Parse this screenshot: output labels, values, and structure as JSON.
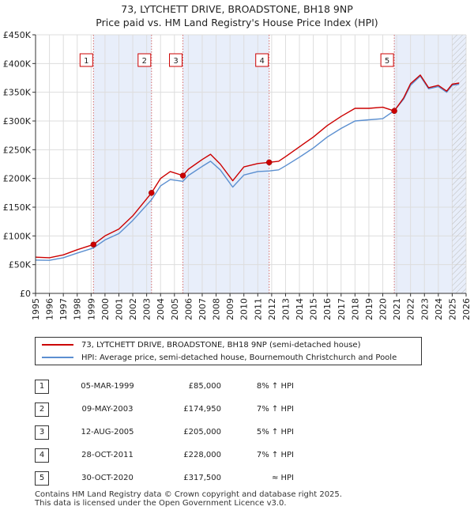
{
  "title_line1": "73, LYTCHETT DRIVE, BROADSTONE, BH18 9NP",
  "title_line2": "Price paid vs. HM Land Registry's House Price Index (HPI)",
  "colors": {
    "property": "#cc0000",
    "hpi": "#5b8fd0",
    "shade": "#e8eefa",
    "marker_line": "#d46a6a"
  },
  "chart_data": {
    "type": "line",
    "xlim": [
      1995,
      2026
    ],
    "ylim": [
      0,
      450000
    ],
    "x_ticks": [
      "1995",
      "1996",
      "1997",
      "1998",
      "1999",
      "2000",
      "2001",
      "2002",
      "2003",
      "2004",
      "2005",
      "2006",
      "2007",
      "2008",
      "2009",
      "2010",
      "2011",
      "2012",
      "2013",
      "2014",
      "2015",
      "2016",
      "2017",
      "2018",
      "2019",
      "2020",
      "2021",
      "2022",
      "2023",
      "2024",
      "2025",
      "2026"
    ],
    "y_ticks": [
      {
        "value": 0,
        "label": "£0"
      },
      {
        "value": 50000,
        "label": "£50K"
      },
      {
        "value": 100000,
        "label": "£100K"
      },
      {
        "value": 150000,
        "label": "£150K"
      },
      {
        "value": 200000,
        "label": "£200K"
      },
      {
        "value": 250000,
        "label": "£250K"
      },
      {
        "value": 300000,
        "label": "£300K"
      },
      {
        "value": 350000,
        "label": "£350K"
      },
      {
        "value": 400000,
        "label": "£400K"
      },
      {
        "value": 450000,
        "label": "£450K"
      }
    ],
    "shaded_ranges": [
      [
        1999.17,
        2003.35
      ],
      [
        2005.61,
        2011.82
      ],
      [
        2020.83,
        2026
      ]
    ],
    "hatched_from": 2025.0,
    "series": [
      {
        "name": "73, LYTCHETT DRIVE, BROADSTONE, BH18 9NP (semi-detached house)",
        "color": "#cc0000",
        "points": [
          [
            1995,
            63000
          ],
          [
            1996,
            62000
          ],
          [
            1997,
            67000
          ],
          [
            1998,
            76000
          ],
          [
            1999.17,
            85000
          ],
          [
            2000,
            100000
          ],
          [
            2001,
            112000
          ],
          [
            2002,
            135000
          ],
          [
            2003.35,
            174950
          ],
          [
            2004,
            200000
          ],
          [
            2004.7,
            212000
          ],
          [
            2005.61,
            205000
          ],
          [
            2006,
            216000
          ],
          [
            2007,
            233000
          ],
          [
            2007.6,
            242000
          ],
          [
            2008.3,
            225000
          ],
          [
            2009.2,
            196000
          ],
          [
            2010,
            220000
          ],
          [
            2011,
            226000
          ],
          [
            2011.82,
            228000
          ],
          [
            2012.5,
            230000
          ],
          [
            2013,
            238000
          ],
          [
            2014,
            255000
          ],
          [
            2015,
            272000
          ],
          [
            2016,
            292000
          ],
          [
            2017,
            308000
          ],
          [
            2018,
            322000
          ],
          [
            2019,
            322000
          ],
          [
            2020,
            324000
          ],
          [
            2020.83,
            317500
          ],
          [
            2021.5,
            340000
          ],
          [
            2022,
            365000
          ],
          [
            2022.7,
            380000
          ],
          [
            2023.3,
            358000
          ],
          [
            2024,
            362000
          ],
          [
            2024.6,
            352000
          ],
          [
            2025,
            364000
          ],
          [
            2025.5,
            366000
          ]
        ]
      },
      {
        "name": "HPI: Average price, semi-detached house, Bournemouth Christchurch and Poole",
        "color": "#5b8fd0",
        "points": [
          [
            1995,
            58000
          ],
          [
            1996,
            57500
          ],
          [
            1997,
            62000
          ],
          [
            1998,
            70000
          ],
          [
            1999.17,
            79000
          ],
          [
            2000,
            93000
          ],
          [
            2001,
            104000
          ],
          [
            2002,
            127000
          ],
          [
            2003.35,
            163000
          ],
          [
            2004,
            187000
          ],
          [
            2004.7,
            198000
          ],
          [
            2005.61,
            195000
          ],
          [
            2006,
            205000
          ],
          [
            2007,
            221000
          ],
          [
            2007.6,
            230000
          ],
          [
            2008.3,
            215000
          ],
          [
            2009.2,
            185000
          ],
          [
            2010,
            206000
          ],
          [
            2011,
            212000
          ],
          [
            2011.82,
            213000
          ],
          [
            2012.5,
            215000
          ],
          [
            2013,
            222000
          ],
          [
            2014,
            237000
          ],
          [
            2015,
            253000
          ],
          [
            2016,
            272000
          ],
          [
            2017,
            287000
          ],
          [
            2018,
            300000
          ],
          [
            2019,
            302000
          ],
          [
            2020,
            304000
          ],
          [
            2020.83,
            318000
          ],
          [
            2021.5,
            338000
          ],
          [
            2022,
            362000
          ],
          [
            2022.7,
            378000
          ],
          [
            2023.3,
            356000
          ],
          [
            2024,
            360000
          ],
          [
            2024.6,
            350000
          ],
          [
            2025,
            362000
          ],
          [
            2025.5,
            364000
          ]
        ]
      }
    ],
    "sales": [
      {
        "label": "1",
        "date": "05-MAR-1999",
        "x": 1999.17,
        "price": 85000,
        "price_label": "£85,000",
        "hpi": "8% ↑ HPI"
      },
      {
        "label": "2",
        "date": "09-MAY-2003",
        "x": 2003.35,
        "price": 174950,
        "price_label": "£174,950",
        "hpi": "7% ↑ HPI"
      },
      {
        "label": "3",
        "date": "12-AUG-2005",
        "x": 2005.61,
        "price": 205000,
        "price_label": "£205,000",
        "hpi": "5% ↑ HPI"
      },
      {
        "label": "4",
        "date": "28-OCT-2011",
        "x": 2011.82,
        "price": 228000,
        "price_label": "£228,000",
        "hpi": "7% ↑ HPI"
      },
      {
        "label": "5",
        "date": "30-OCT-2020",
        "x": 2020.83,
        "price": 317500,
        "price_label": "£317,500",
        "hpi": "≈ HPI"
      }
    ]
  },
  "legend": {
    "property": "73, LYTCHETT DRIVE, BROADSTONE, BH18 9NP (semi-detached house)",
    "hpi": "HPI: Average price, semi-detached house, Bournemouth Christchurch and Poole"
  },
  "footer": {
    "line1": "Contains HM Land Registry data © Crown copyright and database right 2025.",
    "line2": "This data is licensed under the Open Government Licence v3.0."
  }
}
